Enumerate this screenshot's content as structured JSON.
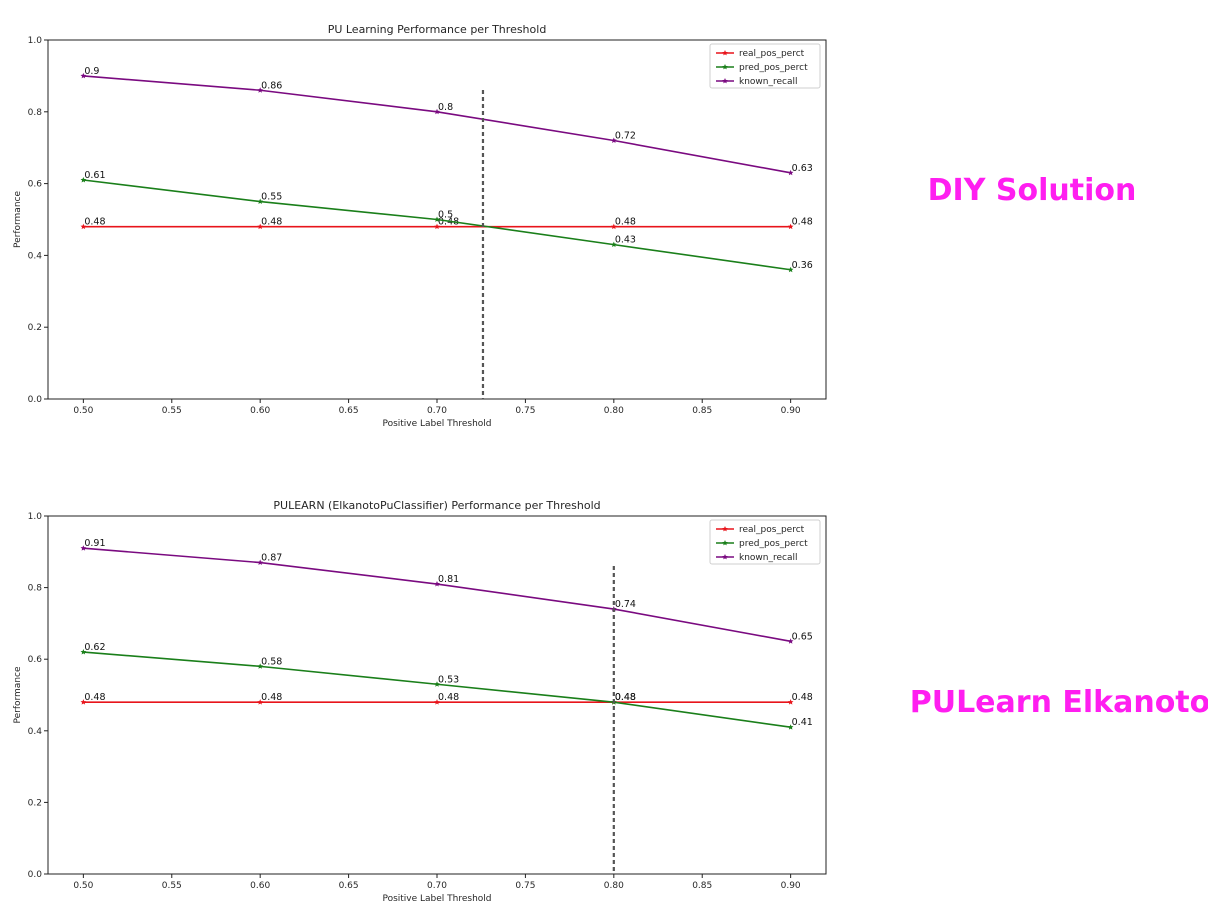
{
  "charts": [
    {
      "id": "diy",
      "side_label": "DIY Solution",
      "chart_data": {
        "type": "line",
        "title": "PU Learning Performance per Threshold",
        "xlabel": "Positive Label Threshold",
        "ylabel": "Performance",
        "x": [
          0.5,
          0.6,
          0.7,
          0.8,
          0.9
        ],
        "xlim": [
          0.48,
          0.92
        ],
        "ylim": [
          0.0,
          1.0
        ],
        "x_ticks": [
          "0.50",
          "0.55",
          "0.60",
          "0.65",
          "0.70",
          "0.75",
          "0.80",
          "0.85",
          "0.90"
        ],
        "y_ticks": [
          "0.0",
          "0.2",
          "0.4",
          "0.6",
          "0.8",
          "1.0"
        ],
        "vline_x": 0.726,
        "legend_position": "top-right",
        "grid": false,
        "series": [
          {
            "name": "real_pos_perct",
            "color": "#e8141b",
            "values": [
              0.48,
              0.48,
              0.48,
              0.48,
              0.48
            ],
            "labels": [
              "0.48",
              "0.48",
              "0.48",
              "0.48",
              "0.48"
            ]
          },
          {
            "name": "pred_pos_perct",
            "color": "#1a7f1a",
            "values": [
              0.61,
              0.55,
              0.5,
              0.43,
              0.36
            ],
            "labels": [
              "0.61",
              "0.55",
              "0.5",
              "0.43",
              "0.36"
            ]
          },
          {
            "name": "known_recall",
            "color": "#7a0a80",
            "values": [
              0.9,
              0.86,
              0.8,
              0.72,
              0.63
            ],
            "labels": [
              "0.9",
              "0.86",
              "0.8",
              "0.72",
              "0.63"
            ]
          }
        ]
      }
    },
    {
      "id": "pulearn",
      "side_label": "PULearn Elkanoto",
      "chart_data": {
        "type": "line",
        "title": "PULEARN (ElkanotoPuClassifier) Performance per Threshold",
        "xlabel": "Positive Label Threshold",
        "ylabel": "Performance",
        "x": [
          0.5,
          0.6,
          0.7,
          0.8,
          0.9
        ],
        "xlim": [
          0.48,
          0.92
        ],
        "ylim": [
          0.0,
          1.0
        ],
        "x_ticks": [
          "0.50",
          "0.55",
          "0.60",
          "0.65",
          "0.70",
          "0.75",
          "0.80",
          "0.85",
          "0.90"
        ],
        "y_ticks": [
          "0.0",
          "0.2",
          "0.4",
          "0.6",
          "0.8",
          "1.0"
        ],
        "vline_x": 0.8,
        "legend_position": "top-right",
        "grid": false,
        "series": [
          {
            "name": "real_pos_perct",
            "color": "#e8141b",
            "values": [
              0.48,
              0.48,
              0.48,
              0.48,
              0.48
            ],
            "labels": [
              "0.48",
              "0.48",
              "0.48",
              "0.48",
              "0.48"
            ]
          },
          {
            "name": "pred_pos_perct",
            "color": "#1a7f1a",
            "values": [
              0.62,
              0.58,
              0.53,
              0.48,
              0.41
            ],
            "labels": [
              "0.62",
              "0.58",
              "0.53",
              "0.48",
              "0.41"
            ]
          },
          {
            "name": "known_recall",
            "color": "#7a0a80",
            "values": [
              0.91,
              0.87,
              0.81,
              0.74,
              0.65
            ],
            "labels": [
              "0.91",
              "0.87",
              "0.81",
              "0.74",
              "0.65"
            ]
          }
        ]
      }
    }
  ]
}
